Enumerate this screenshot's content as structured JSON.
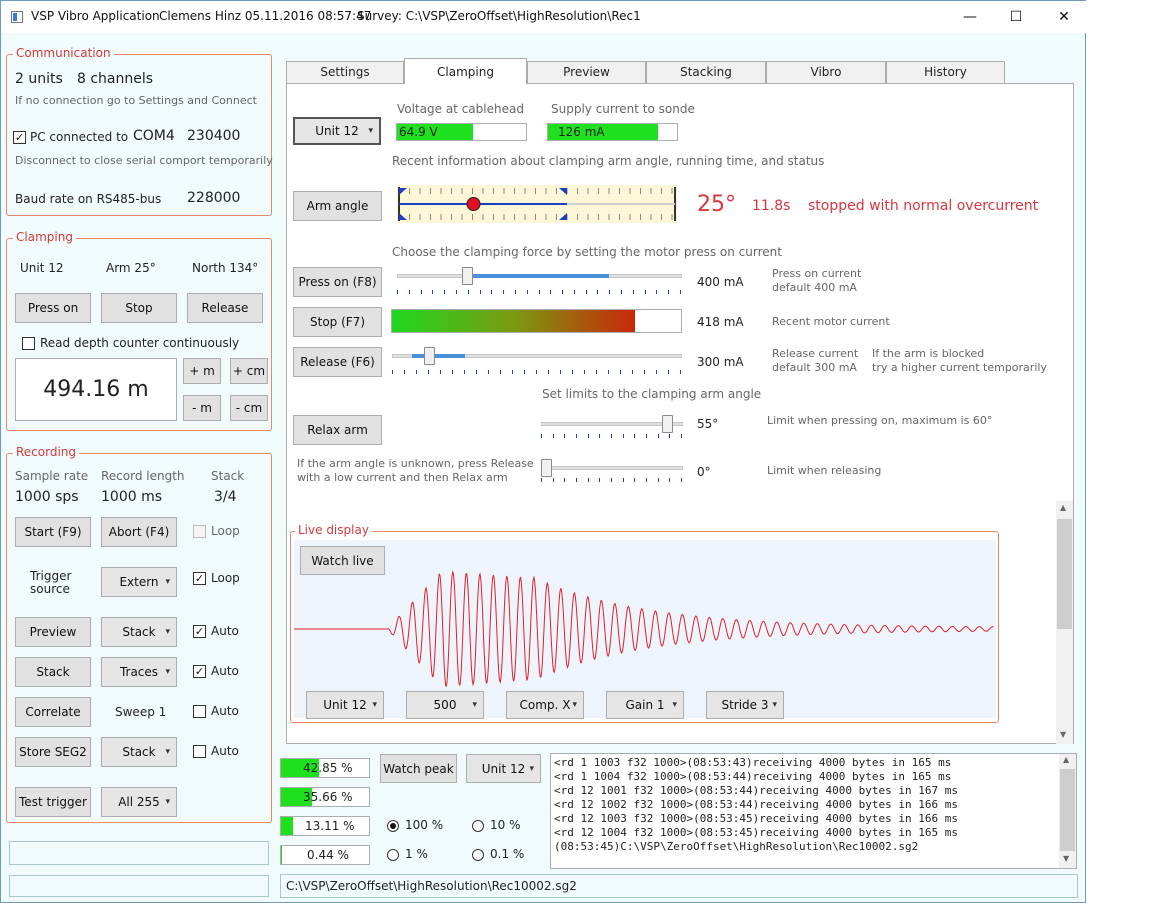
{
  "titlebar": {
    "app": "VSP Vibro Application",
    "user": "Clemens Hinz 05.11.2016 08:57:47",
    "survey": "Survey: C:\\VSP\\ZeroOffset\\HighResolution\\Rec1",
    "minimize": "—",
    "maximize": "☐",
    "close": "✕"
  },
  "communication": {
    "title": "Communication",
    "units": "2 units",
    "channels": "8 channels",
    "hint": "If no connection go to Settings and Connect",
    "pc_connected_label": "PC connected to",
    "pc_connected_checked": true,
    "com_port": "COM4",
    "com_baud": "230400",
    "disconnect_hint": "Disconnect to close serial comport temporarily",
    "baud_label": "Baud rate on RS485-bus",
    "baud_value": "228000"
  },
  "clamping_group": {
    "title": "Clamping",
    "unit": "Unit 12",
    "arm": "Arm 25°",
    "north": "North 134°",
    "press_on": "Press on",
    "stop": "Stop",
    "release": "Release",
    "read_depth_label": "Read depth counter continuously",
    "depth": "494.16 m",
    "plus_m": "+ m",
    "plus_cm": "+ cm",
    "minus_m": "- m",
    "minus_cm": "- cm"
  },
  "recording": {
    "title": "Recording",
    "sample_rate_label": "Sample rate",
    "record_length_label": "Record length",
    "stack_label": "Stack",
    "sample_rate": "1000 sps",
    "record_length": "1000 ms",
    "stack": "3/4",
    "start": "Start  (F9)",
    "abort": "Abort  (F4)",
    "loop1": "Loop",
    "trigger_source_1": "Trigger",
    "trigger_source_2": "source",
    "extern": "Extern",
    "loop2": "Loop",
    "preview": "Preview",
    "stack_combo1": "Stack",
    "auto1": "Auto",
    "stack_btn": "Stack",
    "traces_combo": "Traces",
    "auto2": "Auto",
    "correlate": "Correlate",
    "sweep": "Sweep 1",
    "auto3": "Auto",
    "store_seg2": "Store SEG2",
    "stack_combo2": "Stack",
    "auto4": "Auto",
    "test_trigger": "Test trigger",
    "all_255": "All 255"
  },
  "tabs": [
    {
      "label": "Settings"
    },
    {
      "label": "Clamping"
    },
    {
      "label": "Preview"
    },
    {
      "label": "Stacking"
    },
    {
      "label": "Vibro"
    },
    {
      "label": "History"
    }
  ],
  "clamping_tab": {
    "unit_combo": "Unit 12",
    "voltage_label": "Voltage at cablehead",
    "voltage_value": "64.9 V",
    "voltage_fraction": 0.59,
    "supply_label": "Supply current to sonde",
    "supply_value": "126 mA",
    "supply_fraction": 0.85,
    "recent_info": "Recent information about clamping arm angle, running time, and status",
    "arm_angle_btn": "Arm angle",
    "arm_angle_value": "25°",
    "arm_angle_fraction": 0.27,
    "running_time": "11.8s",
    "status": "stopped with normal overcurrent",
    "force_hint": "Choose the clamping force by setting the motor press on current",
    "press_on_btn": "Press on (F8)",
    "press_on_value": "400 mA",
    "press_on_fraction": 0.25,
    "press_on_desc_1": "Press on current",
    "press_on_desc_2": "default 400 mA",
    "stop_btn": "Stop (F7)",
    "motor_value": "418 mA",
    "motor_fraction": 0.84,
    "motor_desc": "Recent motor current",
    "release_btn": "Release (F6)",
    "release_value": "300 mA",
    "release_fraction": 0.12,
    "release_desc_1": "Release current",
    "release_desc_2": "default 300 mA",
    "blocked_desc_1": "If the arm is blocked",
    "blocked_desc_2": "try a higher current temporarily",
    "limits_hint": "Set limits to the clamping arm angle",
    "relax_btn": "Relax arm",
    "limit_press_value": "55°",
    "limit_press_fraction": 0.92,
    "limit_press_desc": "Limit when pressing on, maximum is 60°",
    "unknown_hint_1": "If the arm angle is unknown, press Release",
    "unknown_hint_2": "with a low current and then Relax arm",
    "limit_release_value": "0°",
    "limit_release_fraction": 0.0,
    "limit_release_desc": "Limit when releasing"
  },
  "live_display": {
    "title": "Live display",
    "watch_live": "Watch live",
    "unit_combo": "Unit 12",
    "scale_combo": "500",
    "comp_combo": "Comp. X",
    "gain_combo": "Gain 1",
    "stride_combo": "Stride 3"
  },
  "levels": [
    {
      "value": "42.85 %",
      "fraction": 0.4285
    },
    {
      "value": "35.66 %",
      "fraction": 0.3566
    },
    {
      "value": "13.11 %",
      "fraction": 0.1311
    },
    {
      "value": "0.44 %",
      "fraction": 0.0044
    }
  ],
  "bottom": {
    "watch_peak": "Watch peak",
    "unit_combo": "Unit 12",
    "r100": "100 %",
    "r10": "10 %",
    "r1": "1 %",
    "r01": "0.1 %",
    "selected_radio": "100 %",
    "path": "C:\\VSP\\ZeroOffset\\HighResolution\\Rec10002.sg2"
  },
  "log": [
    "<rd 1 1003 f32 1000>(08:53:43)receiving 4000 bytes in 165 ms",
    "<rd 1 1004 f32 1000>(08:53:44)receiving 4000 bytes in 165 ms",
    "<rd 12 1001 f32 1000>(08:53:44)receiving 4000 bytes in 167 ms",
    "<rd 12 1002 f32 1000>(08:53:44)receiving 4000 bytes in 166 ms",
    "<rd 12 1003 f32 1000>(08:53:45)receiving 4000 bytes in 166 ms",
    "<rd 12 1004 f32 1000>(08:53:45)receiving 4000 bytes in 165 ms",
    "(08:53:45)C:\\VSP\\ZeroOffset\\HighResolution\\Rec10002.sg2"
  ],
  "colors": {
    "group_border": "#e8876a",
    "group_title": "#d23a3a",
    "level_green": "#1fe01f",
    "status_red": "#d9363e",
    "wave_red": "#e0202a",
    "slider_blue": "#4a90d9"
  }
}
